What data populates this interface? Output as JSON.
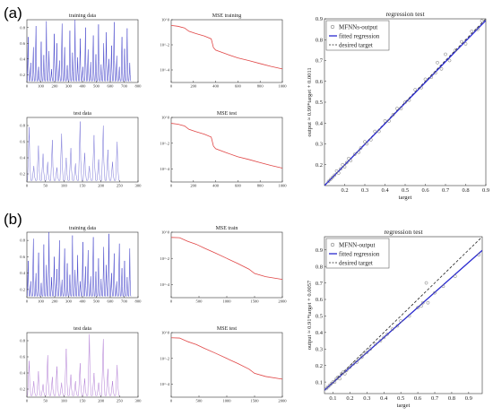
{
  "panels": [
    {
      "label": "(a)"
    },
    {
      "label": "(b)"
    }
  ],
  "colors": {
    "training": "#3a3ac8",
    "test": "#7a76d8",
    "test_b": "#b07ad4",
    "mse": "#e04646",
    "regression": "#2a2ad0",
    "desired": "#222222",
    "markers": "#777777"
  },
  "chart_data": [
    {
      "id": "a_training",
      "type": "line",
      "title": "training data",
      "xlim": [
        0,
        800
      ],
      "ylim": [
        0.1,
        0.9
      ],
      "xticks": [
        "0",
        "100",
        "200",
        "300",
        "400",
        "500",
        "600",
        "700",
        "800"
      ],
      "yticks": [
        "0.2",
        "0.4",
        "0.6",
        "0.8"
      ],
      "x_extent": 750,
      "y_baseline": 0.12,
      "peaks": [
        0.68,
        0.35,
        0.55,
        0.82,
        0.3,
        0.62,
        0.45,
        0.88,
        0.5,
        0.27,
        0.72,
        0.6,
        0.38,
        0.85,
        0.55,
        0.32,
        0.76,
        0.48,
        0.9,
        0.42,
        0.66,
        0.3,
        0.8,
        0.52,
        0.36,
        0.7,
        0.46,
        0.84,
        0.33,
        0.6,
        0.74,
        0.4,
        0.57,
        0.87,
        0.44,
        0.3,
        0.68,
        0.53,
        0.79,
        0.35
      ]
    },
    {
      "id": "a_mse_training",
      "type": "line",
      "title": "MSE training",
      "yscale": "log",
      "xlim": [
        0,
        1000
      ],
      "ylim": [
        1e-05,
        1
      ],
      "xticks": [
        "0",
        "200",
        "400",
        "600",
        "800",
        "1000"
      ],
      "yticks": [
        "10^0",
        "10^-2",
        "10^-4"
      ],
      "x": [
        0,
        60,
        120,
        160,
        220,
        300,
        360,
        380,
        400,
        500,
        600,
        700,
        800,
        900,
        1000
      ],
      "y": [
        0.35,
        0.3,
        0.22,
        0.12,
        0.08,
        0.05,
        0.03,
        0.006,
        0.0038,
        0.0018,
        0.0009,
        0.00055,
        0.00032,
        0.00019,
        0.00012
      ]
    },
    {
      "id": "a_test",
      "type": "line",
      "title": "test data",
      "xlim": [
        0,
        300
      ],
      "ylim": [
        0.1,
        0.9
      ],
      "xticks": [
        "0",
        "50",
        "100",
        "150",
        "200",
        "250",
        "300"
      ],
      "yticks": [
        "0.2",
        "0.4",
        "0.6",
        "0.8"
      ],
      "x_extent": 250,
      "y_baseline": 0.12,
      "peaks": [
        0.78,
        0.3,
        0.55,
        0.45,
        0.35,
        0.62,
        0.28,
        0.7,
        0.4,
        0.52,
        0.33,
        0.85,
        0.46,
        0.3,
        0.68,
        0.38,
        0.8,
        0.5,
        0.35,
        0.6
      ]
    },
    {
      "id": "a_mse_test",
      "type": "line",
      "title": "MSE test",
      "yscale": "log",
      "xlim": [
        0,
        1000
      ],
      "ylim": [
        1e-05,
        1
      ],
      "xticks": [
        "0",
        "200",
        "400",
        "600",
        "800",
        "1000"
      ],
      "yticks": [
        "10^0",
        "10^-2",
        "10^-4"
      ],
      "x": [
        0,
        60,
        120,
        160,
        220,
        300,
        360,
        380,
        400,
        500,
        600,
        700,
        800,
        900,
        1000
      ],
      "y": [
        0.35,
        0.3,
        0.22,
        0.12,
        0.08,
        0.05,
        0.03,
        0.006,
        0.0038,
        0.0018,
        0.0009,
        0.00055,
        0.00032,
        0.00019,
        0.00012
      ]
    },
    {
      "id": "a_regression",
      "type": "scatter",
      "title": "regression test",
      "xlabel": "target",
      "ylabel": "output ≈ 0.99*target + 0.0011",
      "xlim": [
        0.1,
        0.9
      ],
      "ylim": [
        0.1,
        0.9
      ],
      "xticks": [
        "0.2",
        "0.3",
        "0.4",
        "0.5",
        "0.6",
        "0.7",
        "0.8",
        "0.9"
      ],
      "yticks": [
        "0.2",
        "0.3",
        "0.4",
        "0.5",
        "0.6",
        "0.7",
        "0.8",
        "0.9"
      ],
      "legend": [
        "MFNNs-output",
        "fitted regression",
        "desired target"
      ],
      "fit": {
        "slope": 0.99,
        "intercept": 0.0011
      },
      "points": [
        [
          0.12,
          0.12
        ],
        [
          0.13,
          0.13
        ],
        [
          0.14,
          0.14
        ],
        [
          0.15,
          0.15
        ],
        [
          0.16,
          0.17
        ],
        [
          0.17,
          0.16
        ],
        [
          0.18,
          0.18
        ],
        [
          0.19,
          0.2
        ],
        [
          0.2,
          0.19
        ],
        [
          0.21,
          0.21
        ],
        [
          0.22,
          0.23
        ],
        [
          0.23,
          0.22
        ],
        [
          0.25,
          0.25
        ],
        [
          0.27,
          0.26
        ],
        [
          0.28,
          0.28
        ],
        [
          0.3,
          0.31
        ],
        [
          0.31,
          0.3
        ],
        [
          0.33,
          0.32
        ],
        [
          0.35,
          0.36
        ],
        [
          0.37,
          0.36
        ],
        [
          0.4,
          0.41
        ],
        [
          0.42,
          0.41
        ],
        [
          0.44,
          0.44
        ],
        [
          0.46,
          0.47
        ],
        [
          0.48,
          0.47
        ],
        [
          0.5,
          0.5
        ],
        [
          0.52,
          0.51
        ],
        [
          0.55,
          0.56
        ],
        [
          0.58,
          0.57
        ],
        [
          0.6,
          0.61
        ],
        [
          0.63,
          0.62
        ],
        [
          0.65,
          0.64
        ],
        [
          0.66,
          0.69
        ],
        [
          0.68,
          0.66
        ],
        [
          0.7,
          0.73
        ],
        [
          0.72,
          0.7
        ],
        [
          0.75,
          0.75
        ],
        [
          0.78,
          0.79
        ],
        [
          0.8,
          0.78
        ],
        [
          0.83,
          0.84
        ],
        [
          0.86,
          0.85
        ],
        [
          0.88,
          0.89
        ]
      ]
    },
    {
      "id": "b_training",
      "type": "line",
      "title": "training data",
      "xlim": [
        0,
        800
      ],
      "ylim": [
        0.1,
        0.9
      ],
      "xticks": [
        "0",
        "100",
        "200",
        "300",
        "400",
        "500",
        "600",
        "700",
        "800"
      ],
      "yticks": [
        "0.2",
        "0.4",
        "0.6",
        "0.8"
      ],
      "x_extent": 750,
      "y_baseline": 0.12,
      "peaks": [
        0.55,
        0.3,
        0.82,
        0.4,
        0.65,
        0.28,
        0.75,
        0.5,
        0.9,
        0.35,
        0.6,
        0.45,
        0.8,
        0.32,
        0.7,
        0.52,
        0.38,
        0.86,
        0.44,
        0.62,
        0.3,
        0.78,
        0.48,
        0.68,
        0.36,
        0.84,
        0.42,
        0.58,
        0.33,
        0.72,
        0.5,
        0.88,
        0.4,
        0.64,
        0.3,
        0.76,
        0.46,
        0.55,
        0.35,
        0.7
      ]
    },
    {
      "id": "b_mse_train",
      "type": "line",
      "title": "MSE train",
      "yscale": "log",
      "xlim": [
        0,
        2000
      ],
      "ylim": [
        1e-05,
        1
      ],
      "xticks": [
        "0",
        "500",
        "1000",
        "1500",
        "2000"
      ],
      "yticks": [
        "10^0",
        "10^-2",
        "10^-4"
      ],
      "x": [
        0,
        150,
        300,
        450,
        600,
        800,
        1000,
        1200,
        1400,
        1500,
        1700,
        2000
      ],
      "y": [
        0.4,
        0.38,
        0.2,
        0.12,
        0.06,
        0.025,
        0.01,
        0.004,
        0.0015,
        0.0007,
        0.0004,
        0.00025
      ]
    },
    {
      "id": "b_test",
      "type": "line",
      "title": "test data",
      "xlim": [
        0,
        300
      ],
      "ylim": [
        0.1,
        0.9
      ],
      "xticks": [
        "0",
        "50",
        "100",
        "150",
        "200",
        "250",
        "300"
      ],
      "yticks": [
        "0.2",
        "0.4",
        "0.6",
        "0.8"
      ],
      "x_extent": 250,
      "y_baseline": 0.12,
      "peaks": [
        0.55,
        0.3,
        0.42,
        0.26,
        0.62,
        0.35,
        0.48,
        0.28,
        0.7,
        0.38,
        0.3,
        0.52,
        0.33,
        0.88,
        0.4,
        0.28,
        0.82,
        0.45,
        0.3,
        0.5
      ]
    },
    {
      "id": "b_mse_test",
      "type": "line",
      "title": "MSE test",
      "yscale": "log",
      "xlim": [
        0,
        2000
      ],
      "ylim": [
        1e-05,
        1
      ],
      "xticks": [
        "0",
        "500",
        "1000",
        "1500",
        "2000"
      ],
      "yticks": [
        "10^0",
        "10^-2",
        "10^-4"
      ],
      "x": [
        0,
        150,
        300,
        450,
        600,
        800,
        1000,
        1200,
        1400,
        1500,
        1700,
        2000
      ],
      "y": [
        0.4,
        0.38,
        0.2,
        0.12,
        0.06,
        0.025,
        0.01,
        0.004,
        0.0015,
        0.0007,
        0.0004,
        0.00025
      ]
    },
    {
      "id": "b_regression",
      "type": "scatter",
      "title": "regression test",
      "xlabel": "target",
      "ylabel": "output ≈ 0.91*target + 0.0057",
      "xlim": [
        0.05,
        0.98
      ],
      "ylim": [
        0.03,
        0.98
      ],
      "xticks": [
        "0.1",
        "0.2",
        "0.3",
        "0.4",
        "0.5",
        "0.6",
        "0.7",
        "0.8",
        "0.9"
      ],
      "yticks": [
        "0.1",
        "0.2",
        "0.3",
        "0.4",
        "0.5",
        "0.6",
        "0.7",
        "0.8",
        "0.9"
      ],
      "legend": [
        "MFNN-output",
        "fitted regression",
        "desired target"
      ],
      "fit": {
        "slope": 0.91,
        "intercept": 0.0057
      },
      "points": [
        [
          0.06,
          0.06
        ],
        [
          0.07,
          0.07
        ],
        [
          0.08,
          0.08
        ],
        [
          0.09,
          0.09
        ],
        [
          0.1,
          0.1
        ],
        [
          0.11,
          0.1
        ],
        [
          0.12,
          0.12
        ],
        [
          0.13,
          0.13
        ],
        [
          0.14,
          0.12
        ],
        [
          0.15,
          0.15
        ],
        [
          0.16,
          0.16
        ],
        [
          0.17,
          0.15
        ],
        [
          0.18,
          0.17
        ],
        [
          0.2,
          0.19
        ],
        [
          0.22,
          0.21
        ],
        [
          0.24,
          0.22
        ],
        [
          0.25,
          0.24
        ],
        [
          0.27,
          0.25
        ],
        [
          0.28,
          0.27
        ],
        [
          0.3,
          0.28
        ],
        [
          0.32,
          0.3
        ],
        [
          0.35,
          0.33
        ],
        [
          0.38,
          0.35
        ],
        [
          0.4,
          0.37
        ],
        [
          0.42,
          0.39
        ],
        [
          0.45,
          0.42
        ],
        [
          0.48,
          0.44
        ],
        [
          0.5,
          0.47
        ],
        [
          0.55,
          0.5
        ],
        [
          0.6,
          0.55
        ],
        [
          0.62,
          0.56
        ],
        [
          0.63,
          0.58
        ],
        [
          0.65,
          0.7
        ],
        [
          0.66,
          0.58
        ],
        [
          0.7,
          0.64
        ],
        [
          0.75,
          0.68
        ],
        [
          0.82,
          0.74
        ],
        [
          0.96,
          0.87
        ]
      ]
    }
  ]
}
